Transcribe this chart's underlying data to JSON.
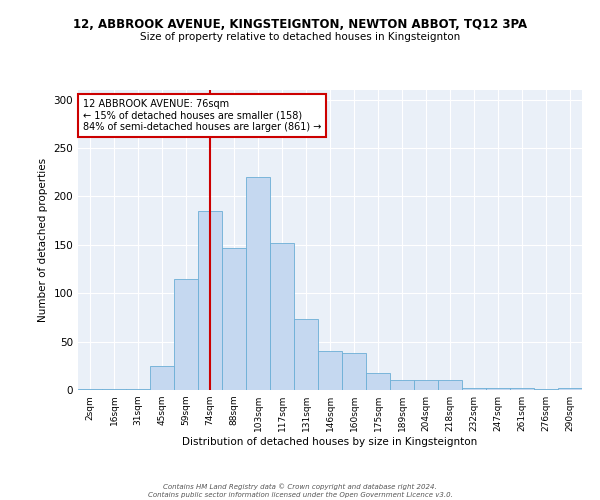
{
  "title_main": "12, ABBROOK AVENUE, KINGSTEIGNTON, NEWTON ABBOT, TQ12 3PA",
  "title_sub": "Size of property relative to detached houses in Kingsteignton",
  "xlabel": "Distribution of detached houses by size in Kingsteignton",
  "ylabel": "Number of detached properties",
  "bar_labels": [
    "2sqm",
    "16sqm",
    "31sqm",
    "45sqm",
    "59sqm",
    "74sqm",
    "88sqm",
    "103sqm",
    "117sqm",
    "131sqm",
    "146sqm",
    "160sqm",
    "175sqm",
    "189sqm",
    "204sqm",
    "218sqm",
    "232sqm",
    "247sqm",
    "261sqm",
    "276sqm",
    "290sqm"
  ],
  "bar_heights": [
    1,
    1,
    1,
    25,
    115,
    185,
    147,
    220,
    152,
    73,
    40,
    38,
    18,
    10,
    10,
    10,
    2,
    2,
    2,
    1,
    2
  ],
  "bar_color": "#c5d8f0",
  "bar_edge_color": "#6baed6",
  "vline_x_index": 5,
  "vline_color": "#cc0000",
  "ylim": [
    0,
    310
  ],
  "yticks": [
    0,
    50,
    100,
    150,
    200,
    250,
    300
  ],
  "annotation_title": "12 ABBROOK AVENUE: 76sqm",
  "annotation_line1": "← 15% of detached houses are smaller (158)",
  "annotation_line2": "84% of semi-detached houses are larger (861) →",
  "annotation_box_color": "#ffffff",
  "annotation_box_edge": "#cc0000",
  "footer_line1": "Contains HM Land Registry data © Crown copyright and database right 2024.",
  "footer_line2": "Contains public sector information licensed under the Open Government Licence v3.0.",
  "background_color": "#eaf0f8",
  "grid_color": "#ffffff",
  "fig_bg": "#ffffff"
}
